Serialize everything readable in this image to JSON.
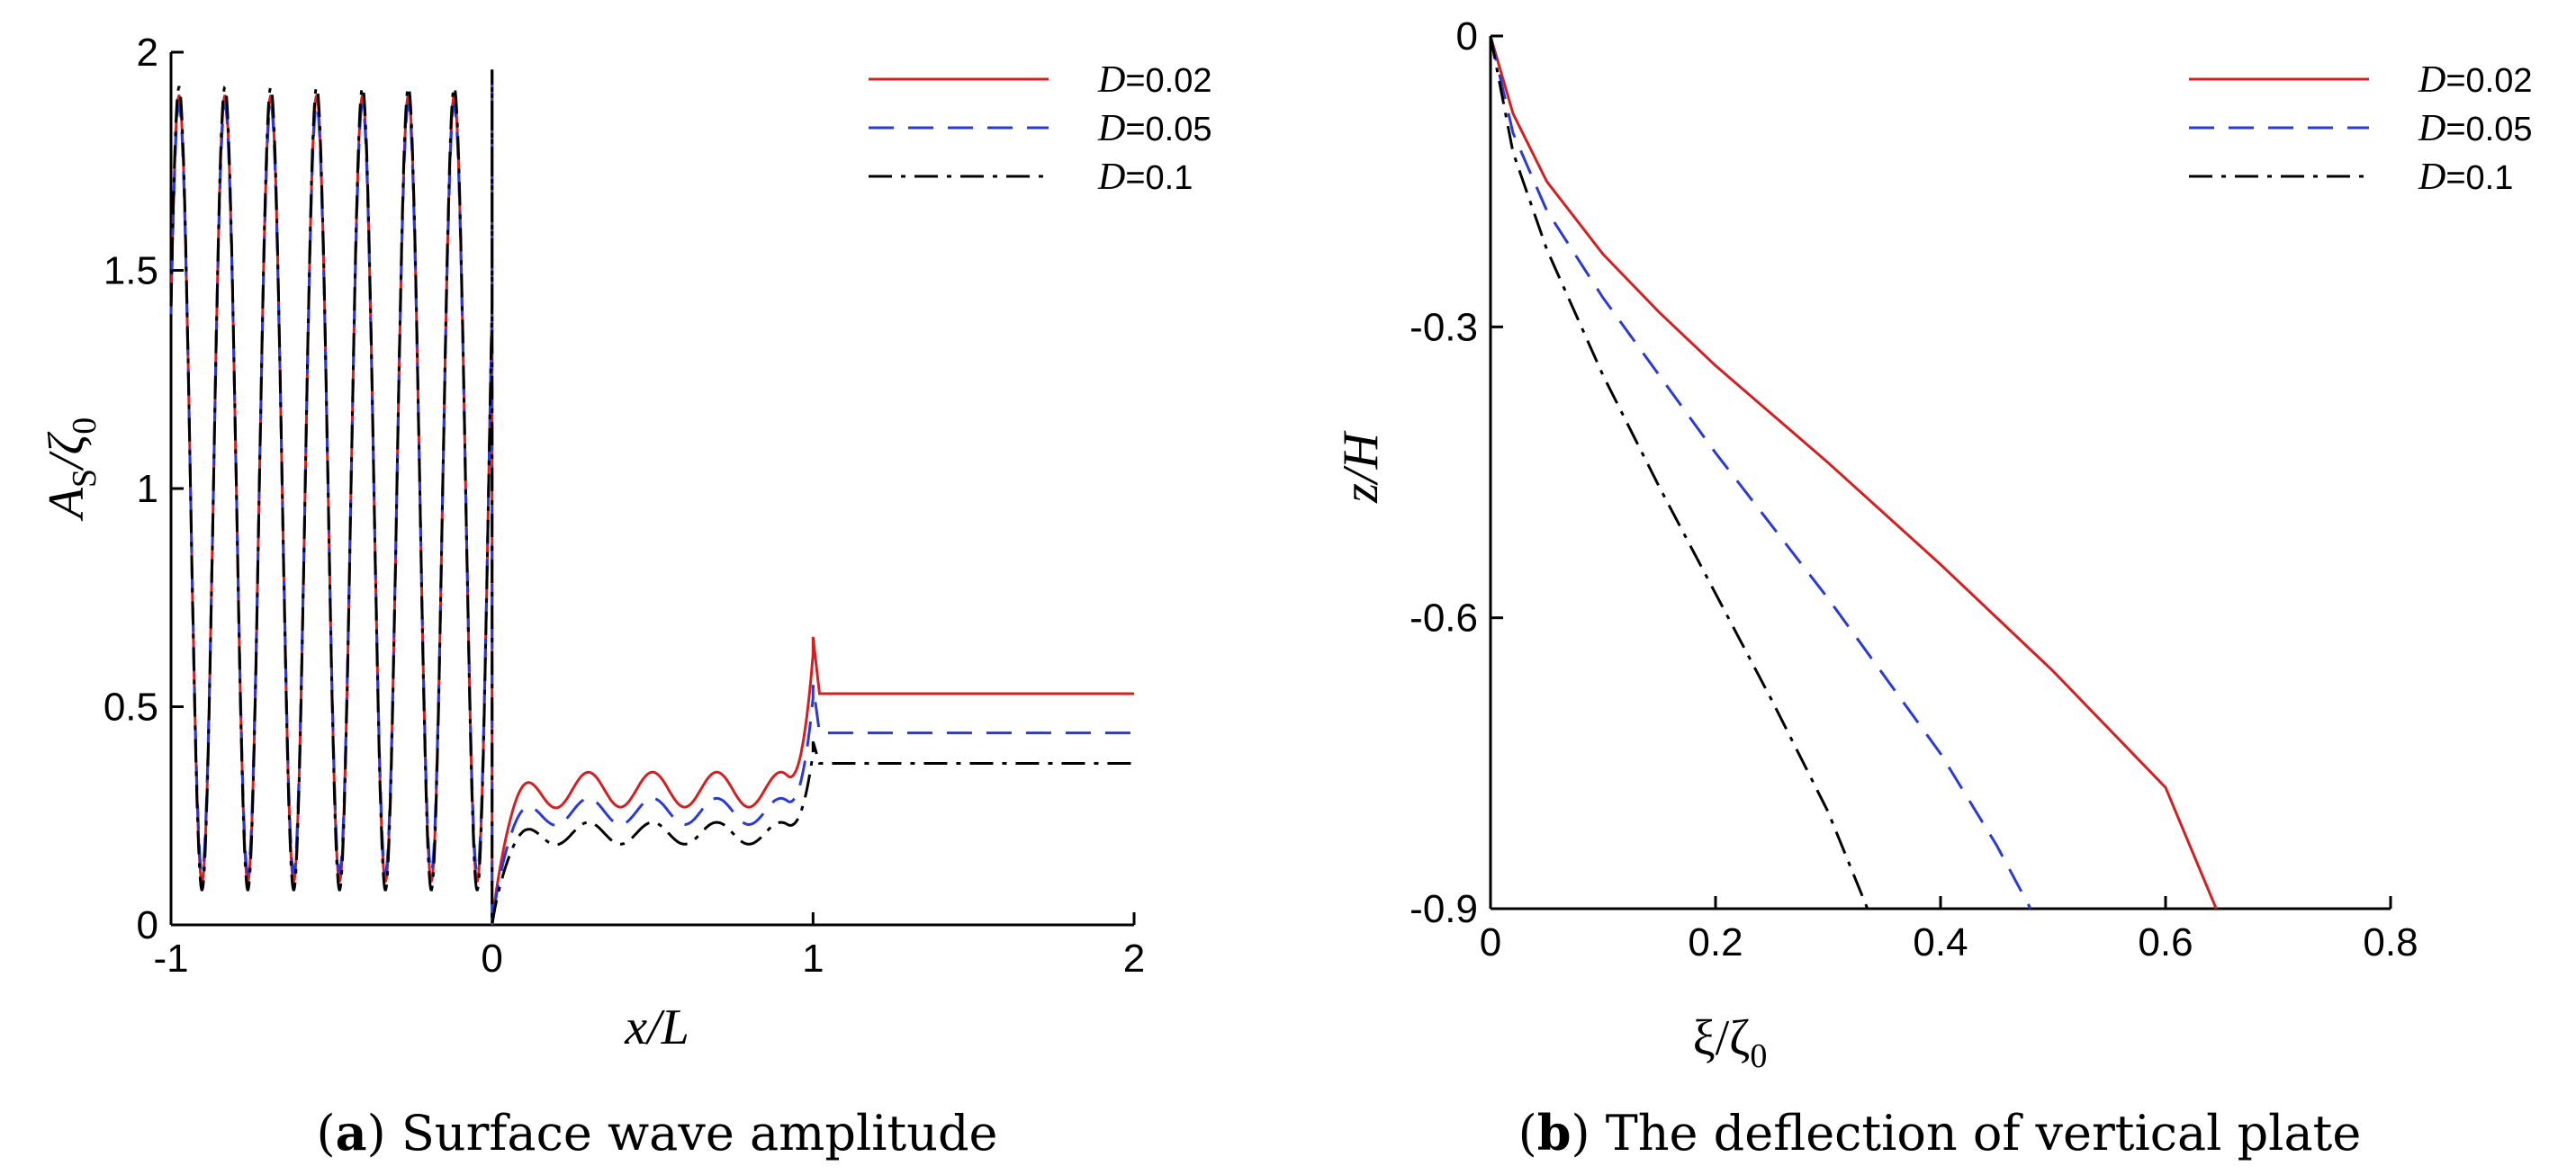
{
  "chart_data": [
    {
      "type": "line",
      "panel_label": "a",
      "caption": "Surface wave amplitude",
      "xlabel": "x/L",
      "ylabel": "A",
      "ylabel_sub": "S",
      "ylabel_tail": "/ζ",
      "ylabel_tail_sub": "0",
      "xlim": [
        -1,
        2
      ],
      "ylim": [
        0,
        2
      ],
      "xticks": [
        "-1",
        "0",
        "1",
        "2"
      ],
      "yticks": [
        "0",
        "0.5",
        "1",
        "1.5",
        "2"
      ],
      "series": [
        {
          "name": "D=0.02",
          "legend_prefix": "D",
          "legend_value": "=0.02",
          "color": "#d42020",
          "dash": "solid",
          "region_left": {
            "mean": 1.0,
            "amp": 0.9,
            "cycles_per_unit": 7
          },
          "region_mid": {
            "base": 0.31,
            "amp": 0.04,
            "cycles_per_unit": 5
          },
          "peak_at_1": 0.66,
          "right_level": 0.53
        },
        {
          "name": "D=0.05",
          "legend_prefix": "D",
          "legend_value": "=0.05",
          "color": "#2a3ad8",
          "dash": "dashed",
          "region_left": {
            "mean": 1.0,
            "amp": 0.88,
            "cycles_per_unit": 7
          },
          "region_mid": {
            "base": 0.26,
            "amp": 0.03,
            "cycles_per_unit": 5
          },
          "peak_at_1": 0.55,
          "right_level": 0.44
        },
        {
          "name": "D=0.1",
          "legend_prefix": "D",
          "legend_value": "=0.1",
          "color": "#000000",
          "dash": "dashdot",
          "region_left": {
            "mean": 1.0,
            "amp": 0.92,
            "cycles_per_unit": 7
          },
          "region_mid": {
            "base": 0.21,
            "amp": 0.025,
            "cycles_per_unit": 5
          },
          "peak_at_1": 0.42,
          "right_level": 0.37
        }
      ]
    },
    {
      "type": "line",
      "panel_label": "b",
      "caption": "The deflection of vertical plate",
      "xlabel": "ξ/ζ",
      "xlabel_sub": "0",
      "ylabel": "z/H",
      "xlim": [
        0,
        0.8
      ],
      "ylim": [
        -0.9,
        0
      ],
      "xticks": [
        "0",
        "0.2",
        "0.4",
        "0.6",
        "0.8"
      ],
      "yticks": [
        "0",
        "-0.3",
        "-0.6",
        "-0.9"
      ],
      "series": [
        {
          "name": "D=0.02",
          "legend_prefix": "D",
          "legend_value": "=0.02",
          "color": "#d42020",
          "dash": "solid",
          "x": [
            0,
            0.02,
            0.05,
            0.1,
            0.15,
            0.2,
            0.3,
            0.4,
            0.5,
            0.6,
            0.645
          ],
          "y": [
            0,
            -0.08,
            -0.15,
            -0.225,
            -0.285,
            -0.34,
            -0.44,
            -0.545,
            -0.655,
            -0.775,
            -0.9
          ]
        },
        {
          "name": "D=0.05",
          "legend_prefix": "D",
          "legend_value": "=0.05",
          "color": "#2a3ad8",
          "dash": "dashed",
          "x": [
            0,
            0.02,
            0.05,
            0.1,
            0.15,
            0.2,
            0.25,
            0.3,
            0.35,
            0.4,
            0.45,
            0.48
          ],
          "y": [
            0,
            -0.1,
            -0.18,
            -0.27,
            -0.35,
            -0.43,
            -0.505,
            -0.58,
            -0.66,
            -0.74,
            -0.835,
            -0.9
          ]
        },
        {
          "name": "D=0.1",
          "legend_prefix": "D",
          "legend_value": "=0.1",
          "color": "#000000",
          "dash": "dashdot",
          "x": [
            0,
            0.02,
            0.05,
            0.1,
            0.15,
            0.2,
            0.25,
            0.3,
            0.335
          ],
          "y": [
            0,
            -0.12,
            -0.22,
            -0.35,
            -0.465,
            -0.575,
            -0.685,
            -0.8,
            -0.9
          ]
        }
      ]
    }
  ]
}
